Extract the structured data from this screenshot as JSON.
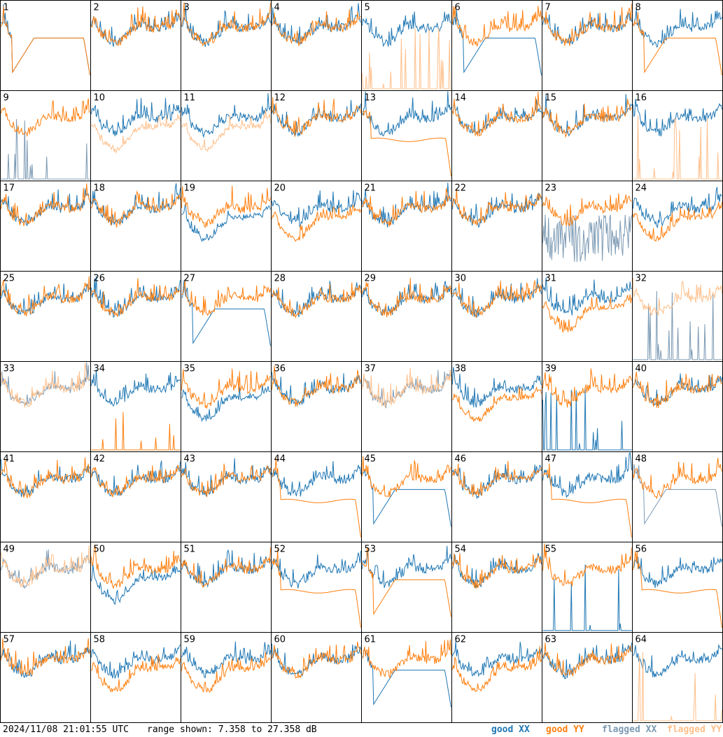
{
  "timestamp": "2024/11/08 21:01:55 UTC",
  "range_text": "range shown: 7.358 to 27.358 dB",
  "colors": {
    "good_xx": "#1f77b4",
    "good_yy": "#ff7f0e",
    "flagged_xx": "#7c9ab4",
    "flagged_yy": "#ffbf8a"
  },
  "chart_data": {
    "type": "line",
    "layout": "8x8 small multiples",
    "grid": true,
    "legend_position": "bottom-right",
    "y_range_db": [
      7.358,
      27.358
    ],
    "legend": [
      {
        "label_pre": "good ",
        "label_pol": "XX",
        "color_key": "good_xx"
      },
      {
        "label_pre": "good ",
        "label_pol": "YY",
        "color_key": "good_yy"
      },
      {
        "label_pre": "flagged ",
        "label_pol": "XX",
        "color_key": "flagged_xx"
      },
      {
        "label_pre": "flagged ",
        "label_pol": "YY",
        "color_key": "flagged_yy"
      }
    ],
    "panels": [
      {
        "id": "1",
        "xx": {
          "p": "dip",
          "f": false
        },
        "yy": {
          "p": "dip",
          "f": false
        }
      },
      {
        "id": "2",
        "xx": {
          "p": "normal",
          "f": false
        },
        "yy": {
          "p": "normal",
          "f": false
        }
      },
      {
        "id": "3",
        "xx": {
          "p": "normal",
          "f": false
        },
        "yy": {
          "p": "normal",
          "f": false
        }
      },
      {
        "id": "4",
        "xx": {
          "p": "normal",
          "f": false
        },
        "yy": {
          "p": "normal",
          "f": false
        }
      },
      {
        "id": "5",
        "xx": {
          "p": "normal",
          "f": false
        },
        "yy": {
          "p": "spikes",
          "f": true
        }
      },
      {
        "id": "6",
        "xx": {
          "p": "dip",
          "f": false
        },
        "yy": {
          "p": "normal",
          "f": false
        }
      },
      {
        "id": "7",
        "xx": {
          "p": "normal",
          "f": false
        },
        "yy": {
          "p": "normal",
          "f": false
        }
      },
      {
        "id": "8",
        "xx": {
          "p": "normal",
          "f": false
        },
        "yy": {
          "p": "dip",
          "f": false
        }
      },
      {
        "id": "9",
        "xx": {
          "p": "spikes",
          "f": true
        },
        "yy": {
          "p": "normal",
          "f": false
        }
      },
      {
        "id": "10",
        "xx": {
          "p": "normal",
          "f": false
        },
        "yy": {
          "p": "low",
          "f": true
        }
      },
      {
        "id": "11",
        "xx": {
          "p": "normal",
          "f": false
        },
        "yy": {
          "p": "low",
          "f": true
        }
      },
      {
        "id": "12",
        "xx": {
          "p": "normal",
          "f": false
        },
        "yy": {
          "p": "normal",
          "f": false
        }
      },
      {
        "id": "13",
        "xx": {
          "p": "normal",
          "f": false
        },
        "yy": {
          "p": "flat",
          "f": false
        }
      },
      {
        "id": "14",
        "xx": {
          "p": "normal",
          "f": false
        },
        "yy": {
          "p": "normal",
          "f": false
        }
      },
      {
        "id": "15",
        "xx": {
          "p": "normal",
          "f": false
        },
        "yy": {
          "p": "normal",
          "f": false
        }
      },
      {
        "id": "16",
        "xx": {
          "p": "normal",
          "f": false
        },
        "yy": {
          "p": "spikes",
          "f": true
        }
      },
      {
        "id": "17",
        "xx": {
          "p": "normal",
          "f": false
        },
        "yy": {
          "p": "normal",
          "f": false
        }
      },
      {
        "id": "18",
        "xx": {
          "p": "normal",
          "f": false
        },
        "yy": {
          "p": "normal",
          "f": false
        }
      },
      {
        "id": "19",
        "xx": {
          "p": "low",
          "f": false
        },
        "yy": {
          "p": "normal",
          "f": false
        }
      },
      {
        "id": "20",
        "xx": {
          "p": "normal",
          "f": false
        },
        "yy": {
          "p": "low",
          "f": false
        }
      },
      {
        "id": "21",
        "xx": {
          "p": "normal",
          "f": false
        },
        "yy": {
          "p": "normal",
          "f": false
        }
      },
      {
        "id": "22",
        "xx": {
          "p": "normal",
          "f": false
        },
        "yy": {
          "p": "normal",
          "f": false
        }
      },
      {
        "id": "23",
        "xx": {
          "p": "noise",
          "f": true
        },
        "yy": {
          "p": "normal",
          "f": false
        }
      },
      {
        "id": "24",
        "xx": {
          "p": "normal",
          "f": false
        },
        "yy": {
          "p": "low",
          "f": false
        }
      },
      {
        "id": "25",
        "xx": {
          "p": "normal",
          "f": false
        },
        "yy": {
          "p": "normal",
          "f": false
        }
      },
      {
        "id": "26",
        "xx": {
          "p": "normal",
          "f": false
        },
        "yy": {
          "p": "normal",
          "f": false
        }
      },
      {
        "id": "27",
        "xx": {
          "p": "dip",
          "f": false
        },
        "yy": {
          "p": "normal",
          "f": false
        }
      },
      {
        "id": "28",
        "xx": {
          "p": "normal",
          "f": false
        },
        "yy": {
          "p": "normal",
          "f": false
        }
      },
      {
        "id": "29",
        "xx": {
          "p": "normal",
          "f": false
        },
        "yy": {
          "p": "normal",
          "f": false
        }
      },
      {
        "id": "30",
        "xx": {
          "p": "normal",
          "f": false
        },
        "yy": {
          "p": "normal",
          "f": false
        }
      },
      {
        "id": "31",
        "xx": {
          "p": "normal",
          "f": false
        },
        "yy": {
          "p": "low",
          "f": false
        }
      },
      {
        "id": "32",
        "xx": {
          "p": "spikes",
          "f": true
        },
        "yy": {
          "p": "normal",
          "f": true
        }
      },
      {
        "id": "33",
        "xx": {
          "p": "normal",
          "f": true
        },
        "yy": {
          "p": "normal",
          "f": true
        }
      },
      {
        "id": "34",
        "xx": {
          "p": "normal",
          "f": false
        },
        "yy": {
          "p": "spikes",
          "f": false
        }
      },
      {
        "id": "35",
        "xx": {
          "p": "low",
          "f": false
        },
        "yy": {
          "p": "normal",
          "f": false
        }
      },
      {
        "id": "36",
        "xx": {
          "p": "normal",
          "f": false
        },
        "yy": {
          "p": "normal",
          "f": false
        }
      },
      {
        "id": "37",
        "xx": {
          "p": "normal",
          "f": true
        },
        "yy": {
          "p": "normal",
          "f": true
        }
      },
      {
        "id": "38",
        "xx": {
          "p": "normal",
          "f": false
        },
        "yy": {
          "p": "low",
          "f": false
        }
      },
      {
        "id": "39",
        "xx": {
          "p": "spikes",
          "f": false
        },
        "yy": {
          "p": "normal",
          "f": false
        }
      },
      {
        "id": "40",
        "xx": {
          "p": "normal",
          "f": false
        },
        "yy": {
          "p": "normal",
          "f": false
        }
      },
      {
        "id": "41",
        "xx": {
          "p": "normal",
          "f": false
        },
        "yy": {
          "p": "normal",
          "f": false
        }
      },
      {
        "id": "42",
        "xx": {
          "p": "normal",
          "f": false
        },
        "yy": {
          "p": "normal",
          "f": false
        }
      },
      {
        "id": "43",
        "xx": {
          "p": "normal",
          "f": false
        },
        "yy": {
          "p": "normal",
          "f": false
        }
      },
      {
        "id": "44",
        "xx": {
          "p": "normal",
          "f": false
        },
        "yy": {
          "p": "flat",
          "f": false
        }
      },
      {
        "id": "45",
        "xx": {
          "p": "dip",
          "f": false
        },
        "yy": {
          "p": "normal",
          "f": false
        }
      },
      {
        "id": "46",
        "xx": {
          "p": "normal",
          "f": false
        },
        "yy": {
          "p": "normal",
          "f": false
        }
      },
      {
        "id": "47",
        "xx": {
          "p": "normal",
          "f": false
        },
        "yy": {
          "p": "flat",
          "f": false
        }
      },
      {
        "id": "48",
        "xx": {
          "p": "dip",
          "f": true
        },
        "yy": {
          "p": "normal",
          "f": false
        }
      },
      {
        "id": "49",
        "xx": {
          "p": "normal",
          "f": true
        },
        "yy": {
          "p": "normal",
          "f": true
        }
      },
      {
        "id": "50",
        "xx": {
          "p": "low",
          "f": false
        },
        "yy": {
          "p": "normal",
          "f": false
        }
      },
      {
        "id": "51",
        "xx": {
          "p": "normal",
          "f": false
        },
        "yy": {
          "p": "normal",
          "f": false
        }
      },
      {
        "id": "52",
        "xx": {
          "p": "normal",
          "f": false
        },
        "yy": {
          "p": "flat",
          "f": false
        }
      },
      {
        "id": "53",
        "xx": {
          "p": "normal",
          "f": false
        },
        "yy": {
          "p": "dip",
          "f": false
        }
      },
      {
        "id": "54",
        "xx": {
          "p": "normal",
          "f": false
        },
        "yy": {
          "p": "normal",
          "f": false
        }
      },
      {
        "id": "55",
        "xx": {
          "p": "spikes",
          "f": false
        },
        "yy": {
          "p": "normal",
          "f": false
        }
      },
      {
        "id": "56",
        "xx": {
          "p": "normal",
          "f": false
        },
        "yy": {
          "p": "flat",
          "f": false
        }
      },
      {
        "id": "57",
        "xx": {
          "p": "normal",
          "f": false
        },
        "yy": {
          "p": "normal",
          "f": false
        }
      },
      {
        "id": "58",
        "xx": {
          "p": "normal",
          "f": false
        },
        "yy": {
          "p": "low",
          "f": false
        }
      },
      {
        "id": "59",
        "xx": {
          "p": "normal",
          "f": false
        },
        "yy": {
          "p": "low",
          "f": false
        }
      },
      {
        "id": "60",
        "xx": {
          "p": "normal",
          "f": false
        },
        "yy": {
          "p": "normal",
          "f": false
        }
      },
      {
        "id": "61",
        "xx": {
          "p": "dip",
          "f": false
        },
        "yy": {
          "p": "normal",
          "f": false
        }
      },
      {
        "id": "62",
        "xx": {
          "p": "normal",
          "f": false
        },
        "yy": {
          "p": "low",
          "f": false
        }
      },
      {
        "id": "63",
        "xx": {
          "p": "normal",
          "f": false
        },
        "yy": {
          "p": "normal",
          "f": false
        }
      },
      {
        "id": "64",
        "xx": {
          "p": "normal",
          "f": false
        },
        "yy": {
          "p": "spikes",
          "f": true
        }
      }
    ]
  }
}
